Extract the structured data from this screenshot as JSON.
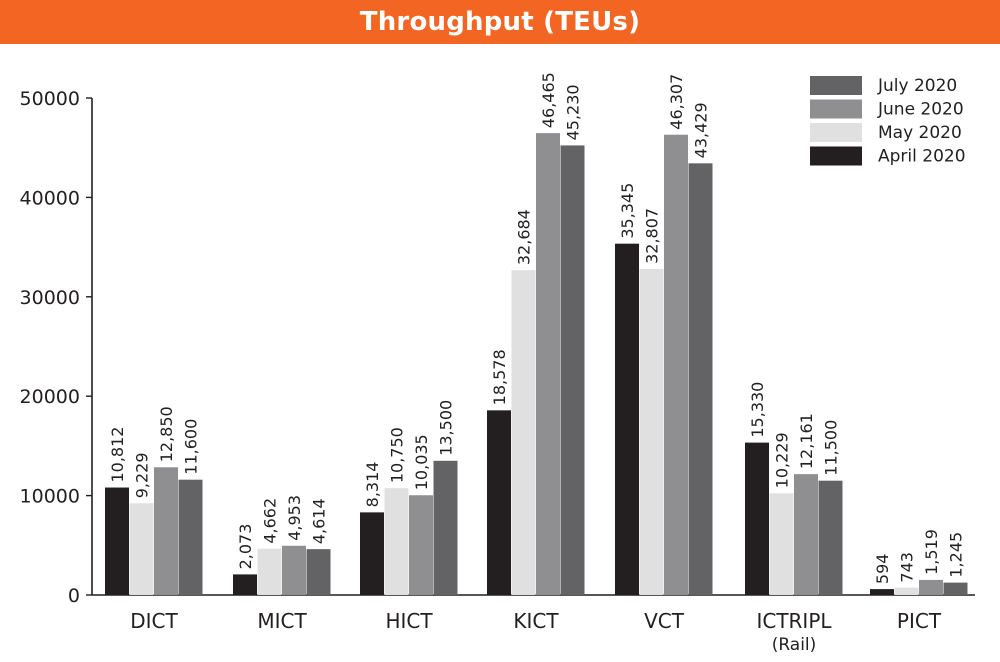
{
  "title": "Throughput (TEUs)",
  "colors": {
    "title_bar": "#f26522",
    "title_text": "#ffffff",
    "April 2020": "#231f20",
    "May 2020": "#e0e0e1",
    "June 2020": "#8f8f91",
    "July 2020": "#636366"
  },
  "chart_data": {
    "type": "bar",
    "title": "Throughput (TEUs)",
    "categories": [
      "DICT",
      "MICT",
      "HICT",
      "KICT",
      "VCT",
      "ICTRIPL\n(Rail)",
      "PICT"
    ],
    "series": [
      {
        "name": "April 2020",
        "values": [
          10812,
          2073,
          8314,
          18578,
          35345,
          15330,
          594
        ],
        "labels": [
          "10,812",
          "2,073",
          "8,314",
          "18,578",
          "35,345",
          "15,330",
          "594"
        ]
      },
      {
        "name": "May 2020",
        "values": [
          9229,
          4662,
          10750,
          32684,
          32807,
          10229,
          743
        ],
        "labels": [
          "9,229",
          "4,662",
          "10,750",
          "32,684",
          "32,807",
          "10,229",
          "743"
        ]
      },
      {
        "name": "June 2020",
        "values": [
          12850,
          4953,
          10035,
          46465,
          46307,
          12161,
          1519
        ],
        "labels": [
          "12,850",
          "4,953",
          "10,035",
          "46,465",
          "46,307",
          "12,161",
          "1,519"
        ]
      },
      {
        "name": "July 2020",
        "values": [
          11600,
          4614,
          13500,
          45230,
          43429,
          11500,
          1245
        ],
        "labels": [
          "11,600",
          "4,614",
          "13,500",
          "45,230",
          "43,429",
          "11,500",
          "1,245"
        ]
      }
    ],
    "y_ticks": [
      0,
      10000,
      20000,
      30000,
      40000,
      50000
    ],
    "y_tick_labels": [
      "0",
      "10000",
      "20000",
      "30000",
      "40000",
      "50000"
    ],
    "ylim": [
      0,
      50000
    ],
    "xlabel": "",
    "ylabel": "",
    "grid": false,
    "legend": {
      "position": "top-right",
      "order": [
        "July 2020",
        "June 2020",
        "May 2020",
        "April 2020"
      ]
    }
  }
}
